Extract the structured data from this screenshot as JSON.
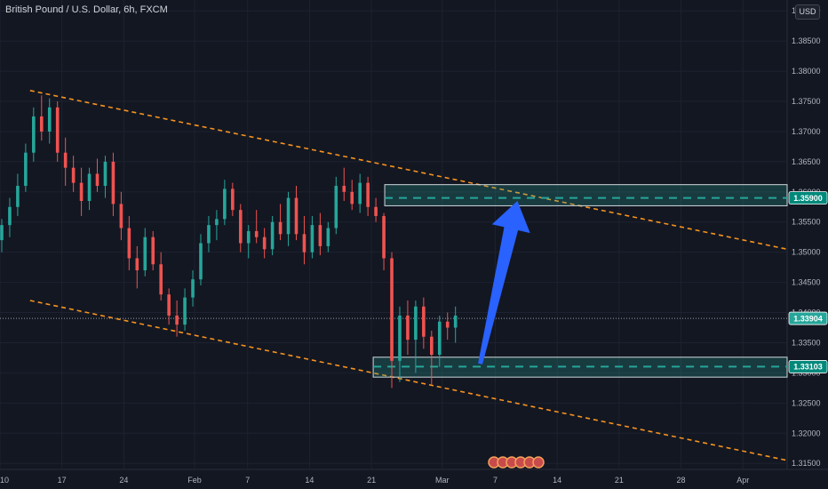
{
  "header": {
    "title": "British Pound / U.S. Dollar, 6h, FXCM",
    "currency_button": "USD"
  },
  "chart_data": {
    "type": "candlestick",
    "title": "British Pound / U.S. Dollar, 6h, FXCM",
    "ylim": [
      1.314,
      1.3918
    ],
    "y_ticks": [
      1.315,
      1.32,
      1.325,
      1.33,
      1.335,
      1.34,
      1.345,
      1.35,
      1.355,
      1.36,
      1.365,
      1.37,
      1.375,
      1.38,
      1.385,
      1.39
    ],
    "y_tick_labels": [
      "1.31500",
      "1.32000",
      "1.32500",
      "1.33000",
      "1.33500",
      "1.34000",
      "1.34500",
      "1.35000",
      "1.35500",
      "1.36000",
      "1.36500",
      "1.37000",
      "1.37500",
      "1.38000",
      "1.38500",
      "1.39000"
    ],
    "x_tick_labels": [
      "10",
      "17",
      "24",
      "Feb",
      "7",
      "14",
      "21",
      "Mar",
      "7",
      "14",
      "21",
      "28",
      "Apr"
    ],
    "x_tick_days": [
      9,
      16,
      23,
      31,
      37,
      44,
      51,
      59,
      65,
      72,
      79,
      86,
      93
    ],
    "x_range_days": [
      9,
      98
    ],
    "current_price": {
      "value": 1.33904,
      "label": "1.33904"
    },
    "price_labels": [
      {
        "value": 1.359,
        "label": "1.35900"
      },
      {
        "value": 1.33103,
        "label": "1.33103"
      }
    ],
    "zones": [
      {
        "name": "resistance-zone",
        "from_day": 52.5,
        "y_top": 1.3612,
        "y_bottom": 1.3577,
        "level": 1.359
      },
      {
        "name": "support-zone",
        "from_day": 51.2,
        "y_top": 1.3326,
        "y_bottom": 1.3293,
        "level": 1.33103
      }
    ],
    "channel": [
      {
        "name": "channel-upper-line",
        "points": [
          [
            12.4,
            1.3768
          ],
          [
            98,
            1.3505
          ]
        ]
      },
      {
        "name": "channel-lower-line",
        "points": [
          [
            12.4,
            1.342
          ],
          [
            98,
            1.3155
          ]
        ]
      }
    ],
    "arrow": {
      "from": [
        63.3,
        1.3315
      ],
      "to": [
        67.5,
        1.3585
      ]
    },
    "candles": [
      [
        1.352,
        1.3555,
        1.35,
        1.3545
      ],
      [
        1.3545,
        1.359,
        1.3525,
        1.3575
      ],
      [
        1.3575,
        1.363,
        1.356,
        1.361
      ],
      [
        1.361,
        1.368,
        1.36,
        1.3665
      ],
      [
        1.3665,
        1.374,
        1.365,
        1.3725
      ],
      [
        1.3725,
        1.376,
        1.3685,
        1.37
      ],
      [
        1.37,
        1.3755,
        1.368,
        1.374
      ],
      [
        1.374,
        1.375,
        1.365,
        1.3665
      ],
      [
        1.3665,
        1.369,
        1.361,
        1.364
      ],
      [
        1.364,
        1.366,
        1.36,
        1.3615
      ],
      [
        1.3615,
        1.364,
        1.356,
        1.3585
      ],
      [
        1.3585,
        1.364,
        1.357,
        1.363
      ],
      [
        1.363,
        1.3655,
        1.36,
        1.361
      ],
      [
        1.361,
        1.366,
        1.359,
        1.365
      ],
      [
        1.365,
        1.3665,
        1.356,
        1.358
      ],
      [
        1.358,
        1.36,
        1.352,
        1.354
      ],
      [
        1.354,
        1.356,
        1.347,
        1.349
      ],
      [
        1.349,
        1.351,
        1.344,
        1.347
      ],
      [
        1.347,
        1.354,
        1.346,
        1.3525
      ],
      [
        1.3525,
        1.3535,
        1.347,
        1.348
      ],
      [
        1.348,
        1.35,
        1.342,
        1.343
      ],
      [
        1.343,
        1.344,
        1.338,
        1.3395
      ],
      [
        1.3395,
        1.342,
        1.336,
        1.338
      ],
      [
        1.338,
        1.344,
        1.337,
        1.3425
      ],
      [
        1.3425,
        1.347,
        1.341,
        1.3455
      ],
      [
        1.3455,
        1.353,
        1.3445,
        1.3515
      ],
      [
        1.3515,
        1.356,
        1.35,
        1.3545
      ],
      [
        1.3545,
        1.357,
        1.352,
        1.3555
      ],
      [
        1.3555,
        1.362,
        1.3545,
        1.3605
      ],
      [
        1.3605,
        1.3615,
        1.356,
        1.357
      ],
      [
        1.357,
        1.358,
        1.35,
        1.3515
      ],
      [
        1.3515,
        1.3545,
        1.349,
        1.3535
      ],
      [
        1.3535,
        1.357,
        1.3515,
        1.3525
      ],
      [
        1.3525,
        1.354,
        1.349,
        1.3505
      ],
      [
        1.3505,
        1.356,
        1.3495,
        1.355
      ],
      [
        1.355,
        1.358,
        1.352,
        1.353
      ],
      [
        1.353,
        1.36,
        1.351,
        1.359
      ],
      [
        1.359,
        1.361,
        1.352,
        1.353
      ],
      [
        1.353,
        1.356,
        1.348,
        1.35
      ],
      [
        1.35,
        1.356,
        1.349,
        1.3545
      ],
      [
        1.3545,
        1.3565,
        1.3495,
        1.351
      ],
      [
        1.351,
        1.355,
        1.35,
        1.354
      ],
      [
        1.354,
        1.3625,
        1.353,
        1.361
      ],
      [
        1.361,
        1.364,
        1.3585,
        1.36
      ],
      [
        1.36,
        1.362,
        1.357,
        1.358
      ],
      [
        1.358,
        1.363,
        1.3565,
        1.3615
      ],
      [
        1.3615,
        1.3625,
        1.356,
        1.3575
      ],
      [
        1.3575,
        1.359,
        1.355,
        1.356
      ],
      [
        1.356,
        1.3565,
        1.347,
        1.349
      ],
      [
        1.349,
        1.35,
        1.3275,
        1.332
      ],
      [
        1.332,
        1.341,
        1.3285,
        1.3395
      ],
      [
        1.3395,
        1.342,
        1.333,
        1.3355
      ],
      [
        1.3355,
        1.342,
        1.33,
        1.341
      ],
      [
        1.341,
        1.3425,
        1.334,
        1.336
      ],
      [
        1.336,
        1.337,
        1.328,
        1.333
      ],
      [
        1.333,
        1.3395,
        1.331,
        1.3385
      ],
      [
        1.3385,
        1.34,
        1.3355,
        1.3375
      ],
      [
        1.3375,
        1.341,
        1.335,
        1.3395
      ]
    ]
  }
}
